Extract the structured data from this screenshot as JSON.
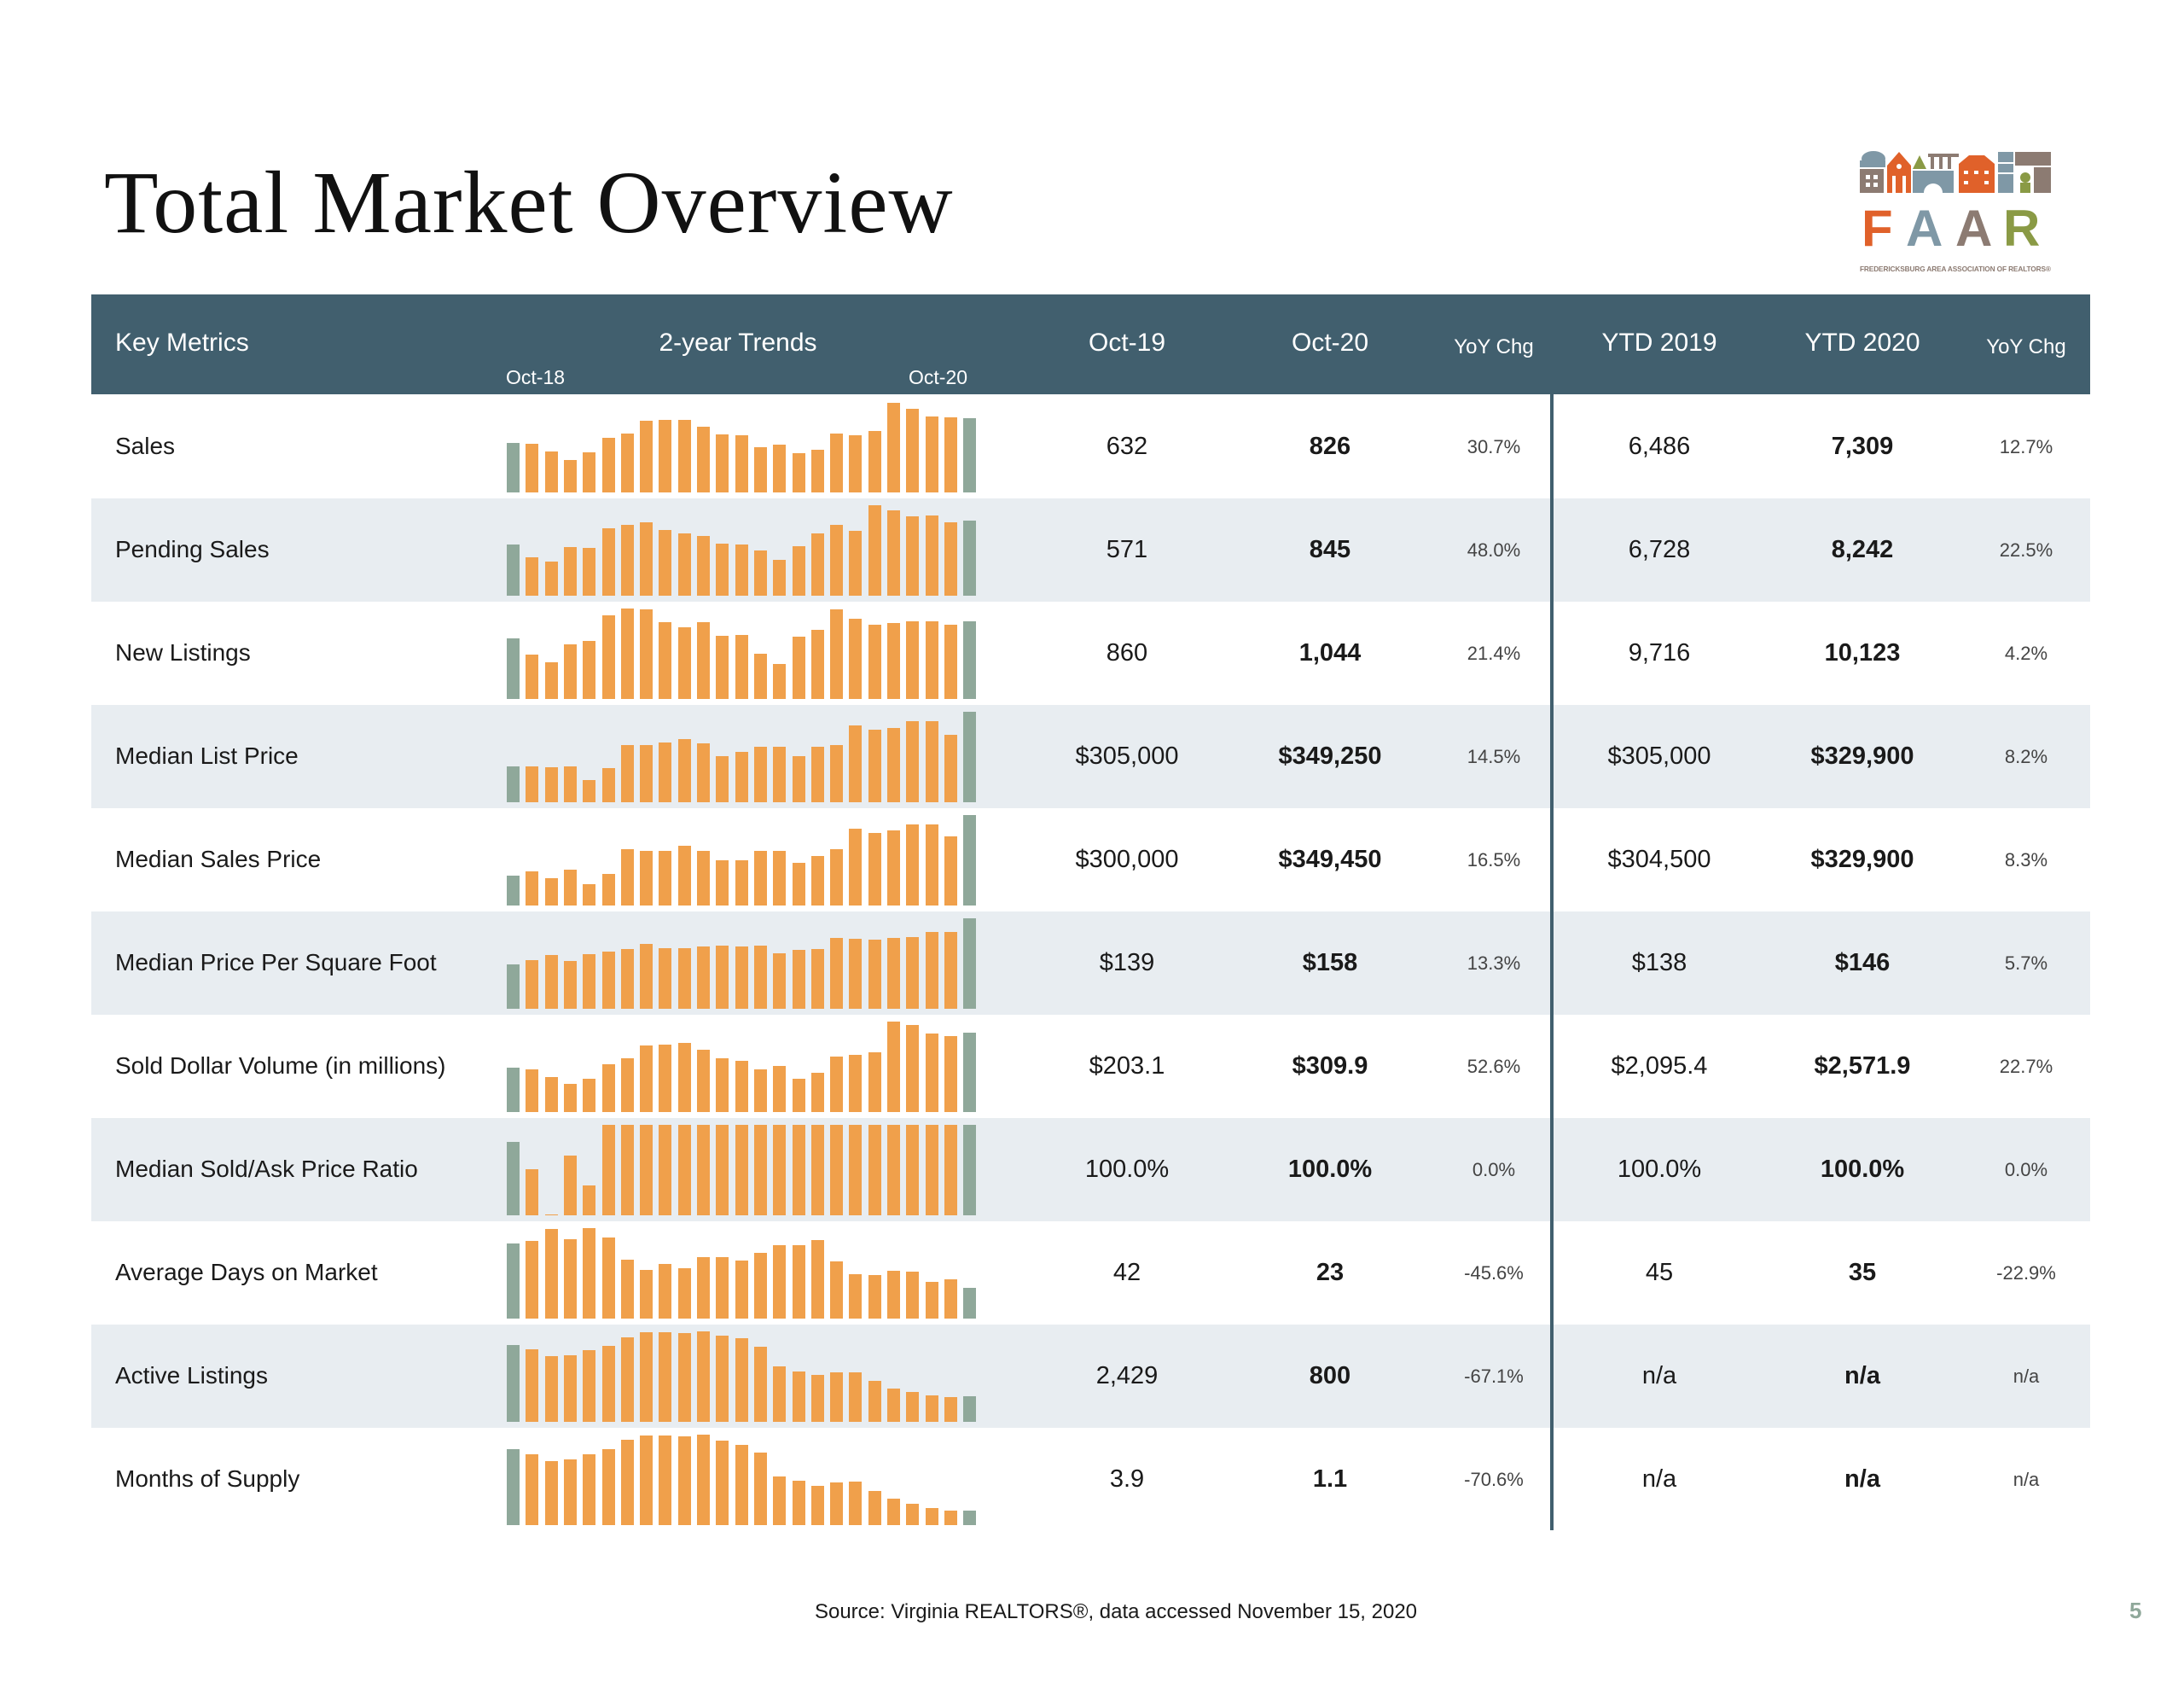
{
  "title": "Total Market Overview",
  "logo": {
    "text": "FAAR",
    "tagline": "FREDERICKSBURG AREA ASSOCIATION OF REALTORS®",
    "colors": {
      "orange": "#e0612a",
      "slate": "#7f98a6",
      "brown": "#8c7b72",
      "green": "#8a9a45"
    }
  },
  "header": {
    "key_metrics": "Key Metrics",
    "trends": "2-year Trends",
    "trend_start": "Oct-18",
    "trend_end": "Oct-20",
    "oct19": "Oct-19",
    "oct20": "Oct-20",
    "yoy": "YoY Chg",
    "ytd2019": "YTD 2019",
    "ytd2020": "YTD 2020",
    "ytd_yoy": "YoY Chg"
  },
  "colors": {
    "header": "#415f6e",
    "bar": "#f0a04b",
    "bar_endpoints": "#8fa89a",
    "row_shade": "#e8edf1"
  },
  "rows": [
    {
      "label": "Sales",
      "oct19": "632",
      "oct20": "826",
      "yoy": "30.7%",
      "ytd19": "6,486",
      "ytd20": "7,309",
      "ytd_yoy": "12.7%",
      "trend": [
        55,
        54,
        45,
        36,
        44,
        60,
        65,
        79,
        80,
        80,
        73,
        64,
        63,
        50,
        53,
        43,
        47,
        65,
        63,
        68,
        99,
        92,
        84,
        83,
        82
      ]
    },
    {
      "label": "Pending Sales",
      "oct19": "571",
      "oct20": "845",
      "yoy": "48.0%",
      "ytd19": "6,728",
      "ytd20": "8,242",
      "ytd_yoy": "22.5%",
      "trend": [
        57,
        42,
        38,
        54,
        53,
        75,
        78,
        81,
        73,
        69,
        66,
        58,
        57,
        50,
        40,
        55,
        69,
        78,
        72,
        100,
        94,
        88,
        89,
        81,
        83
      ]
    },
    {
      "label": "New Listings",
      "oct19": "860",
      "oct20": "1,044",
      "yoy": "21.4%",
      "ytd19": "9,716",
      "ytd20": "10,123",
      "ytd_yoy": "4.2%",
      "trend": [
        67,
        49,
        41,
        60,
        64,
        92,
        100,
        99,
        85,
        79,
        85,
        70,
        71,
        50,
        39,
        69,
        76,
        99,
        89,
        82,
        84,
        86,
        86,
        82,
        86
      ]
    },
    {
      "label": "Median List Price",
      "oct19": "$305,000",
      "oct20": "$349,250",
      "yoy": "14.5%",
      "ytd19": "$305,000",
      "ytd20": "$329,900",
      "ytd_yoy": "8.2%",
      "trend": [
        40,
        40,
        39,
        40,
        25,
        38,
        63,
        63,
        66,
        70,
        65,
        51,
        56,
        61,
        61,
        51,
        61,
        63,
        85,
        80,
        82,
        90,
        90,
        75,
        100
      ]
    },
    {
      "label": "Median Sales Price",
      "oct19": "$300,000",
      "oct20": "$349,450",
      "yoy": "16.5%",
      "ytd19": "$304,500",
      "ytd20": "$329,900",
      "ytd_yoy": "8.3%",
      "trend": [
        33,
        38,
        30,
        40,
        24,
        35,
        62,
        60,
        60,
        66,
        60,
        50,
        50,
        60,
        60,
        47,
        55,
        62,
        85,
        80,
        83,
        90,
        90,
        76,
        100
      ]
    },
    {
      "label": "Median Price Per Square Foot",
      "oct19": "$139",
      "oct20": "$158",
      "yoy": "13.3%",
      "ytd19": "$138",
      "ytd20": "$146",
      "ytd_yoy": "5.7%",
      "trend": [
        49,
        54,
        59,
        53,
        60,
        63,
        66,
        72,
        67,
        67,
        69,
        70,
        69,
        70,
        61,
        65,
        66,
        78,
        77,
        76,
        78,
        79,
        85,
        85,
        100
      ]
    },
    {
      "label": "Sold Dollar Volume (in millions)",
      "oct19": "$203.1",
      "oct20": "$309.9",
      "yoy": "52.6%",
      "ytd19": "$2,095.4",
      "ytd20": "$2,571.9",
      "ytd_yoy": "22.7%",
      "trend": [
        49,
        47,
        39,
        31,
        37,
        53,
        59,
        74,
        75,
        76,
        69,
        59,
        57,
        47,
        51,
        37,
        43,
        61,
        63,
        66,
        100,
        96,
        87,
        84,
        88
      ]
    },
    {
      "label": "Median Sold/Ask Price Ratio",
      "oct19": "100.0%",
      "oct20": "100.0%",
      "yoy": "0.0%",
      "ytd19": "100.0%",
      "ytd20": "100.0%",
      "ytd_yoy": "0.0%",
      "trend": [
        81,
        51,
        1,
        66,
        33,
        100,
        100,
        100,
        100,
        100,
        100,
        100,
        100,
        100,
        100,
        100,
        100,
        100,
        100,
        100,
        100,
        100,
        100,
        100,
        100
      ]
    },
    {
      "label": "Average Days on Market",
      "oct19": "42",
      "oct20": "23",
      "yoy": "-45.6%",
      "ytd19": "45",
      "ytd20": "35",
      "ytd_yoy": "-22.9%",
      "trend": [
        83,
        86,
        99,
        88,
        100,
        90,
        65,
        54,
        60,
        56,
        68,
        68,
        64,
        73,
        81,
        81,
        87,
        63,
        49,
        48,
        53,
        52,
        41,
        43,
        34
      ]
    },
    {
      "label": "Active Listings",
      "oct19": "2,429",
      "oct20": "800",
      "yoy": "-67.1%",
      "ytd19": "n/a",
      "ytd20": "n/a",
      "ytd_yoy": "n/a",
      "trend": [
        85,
        80,
        73,
        74,
        79,
        84,
        93,
        99,
        99,
        98,
        100,
        95,
        92,
        83,
        61,
        56,
        52,
        55,
        55,
        45,
        37,
        33,
        29,
        27,
        28
      ]
    },
    {
      "label": "Months of Supply",
      "oct19": "3.9",
      "oct20": "1.1",
      "yoy": "-70.6%",
      "ytd19": "n/a",
      "ytd20": "n/a",
      "ytd_yoy": "n/a",
      "trend": [
        84,
        78,
        71,
        73,
        78,
        84,
        94,
        99,
        99,
        98,
        100,
        93,
        89,
        80,
        54,
        49,
        43,
        47,
        48,
        38,
        29,
        24,
        19,
        16,
        16
      ]
    }
  ],
  "source": "Source: Virginia REALTORS®, data accessed November 15, 2020",
  "page_number": "5"
}
